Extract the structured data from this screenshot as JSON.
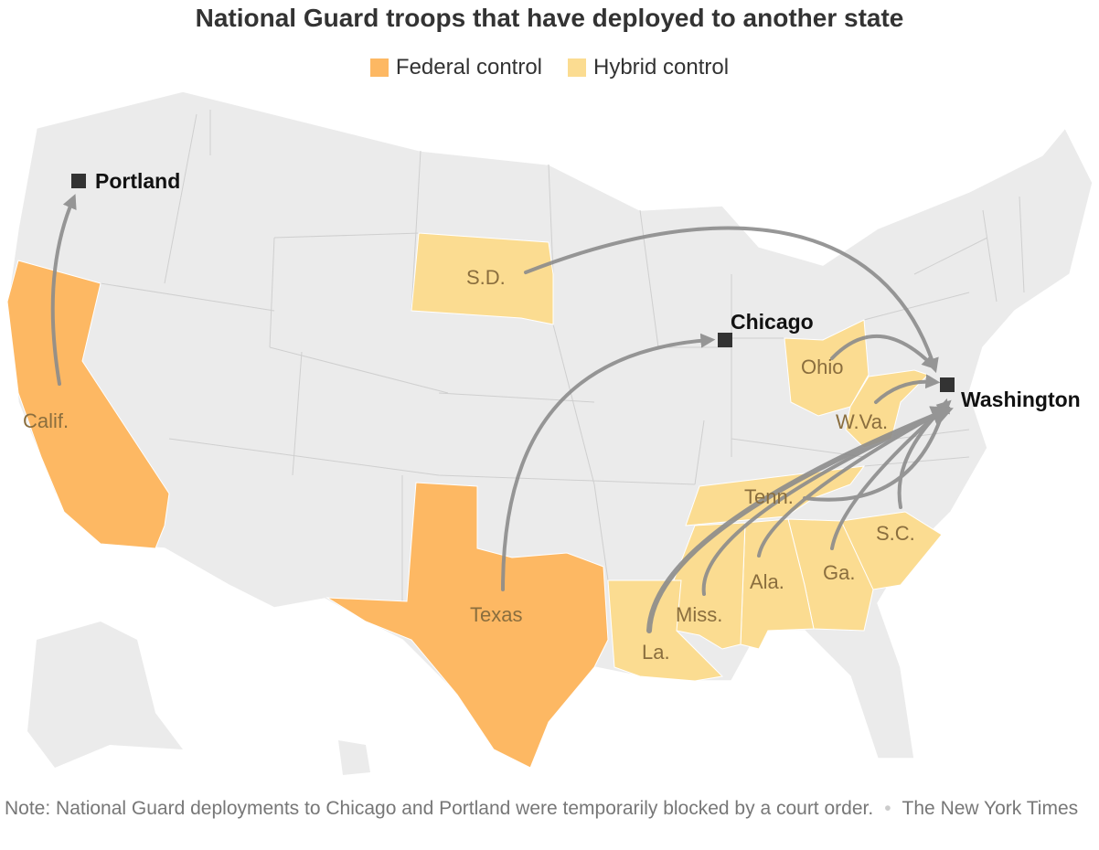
{
  "title": "National Guard troops that have deployed to another state",
  "legend": [
    {
      "label": "Federal control",
      "color": "#FDB863"
    },
    {
      "label": "Hybrid control",
      "color": "#FBDC91"
    }
  ],
  "colors": {
    "land": "#EBEBEB",
    "border": "#FFFFFF",
    "arrow": "#8C8C8C",
    "city_marker": "#333333"
  },
  "states": {
    "calif": "Calif.",
    "texas": "Texas",
    "sd": "S.D.",
    "ohio": "Ohio",
    "wva": "W.Va.",
    "tenn": "Tenn.",
    "sc": "S.C.",
    "ga": "Ga.",
    "ala": "Ala.",
    "miss": "Miss.",
    "la": "La."
  },
  "cities": {
    "portland": "Portland",
    "chicago": "Chicago",
    "washington": "Washington"
  },
  "note": "Note: National Guard deployments to Chicago and Portland were temporarily blocked by a court order.",
  "source": "The New York Times"
}
